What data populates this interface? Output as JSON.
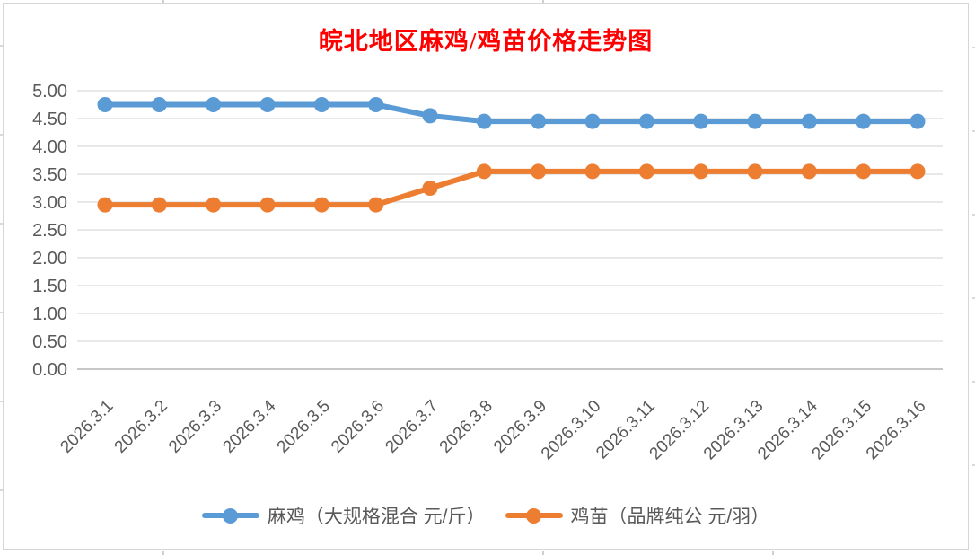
{
  "chart_data": {
    "type": "line",
    "title": "皖北地区麻鸡/鸡苗价格走势图",
    "title_color": "#FF0000",
    "categories": [
      "2026.3.1",
      "2026.3.2",
      "2026.3.3",
      "2026.3.4",
      "2026.3.5",
      "2026.3.6",
      "2026.3.7",
      "2026.3.8",
      "2026.3.9",
      "2026.3.10",
      "2026.3.11",
      "2026.3.12",
      "2026.3.13",
      "2026.3.14",
      "2026.3.15",
      "2026.3.16"
    ],
    "series": [
      {
        "name": "麻鸡（大规格混合 元/斤）",
        "color": "#5B9BD5",
        "values": [
          4.75,
          4.75,
          4.75,
          4.75,
          4.75,
          4.75,
          4.55,
          4.45,
          4.45,
          4.45,
          4.45,
          4.45,
          4.45,
          4.45,
          4.45,
          4.45
        ]
      },
      {
        "name": "鸡苗（品牌纯公 元/羽）",
        "color": "#ED7D31",
        "values": [
          2.95,
          2.95,
          2.95,
          2.95,
          2.95,
          2.95,
          3.25,
          3.55,
          3.55,
          3.55,
          3.55,
          3.55,
          3.55,
          3.55,
          3.55,
          3.55
        ]
      }
    ],
    "y_ticks": [
      "5.00",
      "4.50",
      "4.00",
      "3.50",
      "3.00",
      "2.50",
      "2.00",
      "1.50",
      "1.00",
      "0.50",
      "0.00"
    ],
    "ylim": [
      0,
      5
    ],
    "y_step": 0.5,
    "xlabel": "",
    "ylabel": "",
    "grid": true,
    "legend_position": "bottom",
    "axis_text_color": "#595959",
    "grid_color": "#D9D9D9",
    "baseline_color": "#BFBFBF",
    "marker": "circle",
    "x_label_rotation": -45
  }
}
